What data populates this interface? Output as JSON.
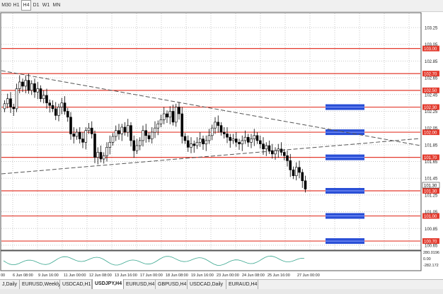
{
  "timeframes": [
    "M30",
    "H1",
    "H4",
    "D1",
    "W1",
    "MN"
  ],
  "active_timeframe": "H4",
  "chart": {
    "symbol": "USDJPY",
    "price_labels": [
      "103.25",
      "103.05",
      "102.85",
      "102.65",
      "102.45",
      "102.25",
      "102.05",
      "101.85",
      "101.65",
      "101.45",
      "101.25",
      "101.05",
      "100.85",
      "100.65"
    ],
    "level_tags": [
      "103.00",
      "102.70",
      "102.50",
      "102.30",
      "102.00",
      "101.70",
      "101.30",
      "101.00",
      "100.70"
    ],
    "current_price": "101.30",
    "date_labels": [
      "00",
      "6 Jun 08:00",
      "9 Jun 16:00",
      "11 Jun 00:00",
      "12 Jun 08:00",
      "13 Jun 16:00",
      "17 Jun 00:00",
      "18 Jun 08:00",
      "19 Jun 16:00",
      "23 Jun 00:00",
      "24 Jun 08:00",
      "25 Jun 16:00",
      "27 Jun 00:00"
    ],
    "indicator_labels": [
      "280.0196",
      "0.00",
      "-282.172"
    ],
    "colors": {
      "level_line": "#e33b2e",
      "zone": "#2a4fd6",
      "tag_bg": "#e33b2e",
      "trend": "#555555",
      "indicator": "#3aa78f"
    }
  },
  "tabs": [
    "J,Daily",
    "EURUSD,Weekly",
    "USDCAD,H1",
    "USDJPY,H4",
    "EURUSD,H4",
    "GBPUSD,H4",
    "USDCAD,Daily",
    "EURAUD,H4"
  ],
  "active_tab": "USDJPY,H4"
}
